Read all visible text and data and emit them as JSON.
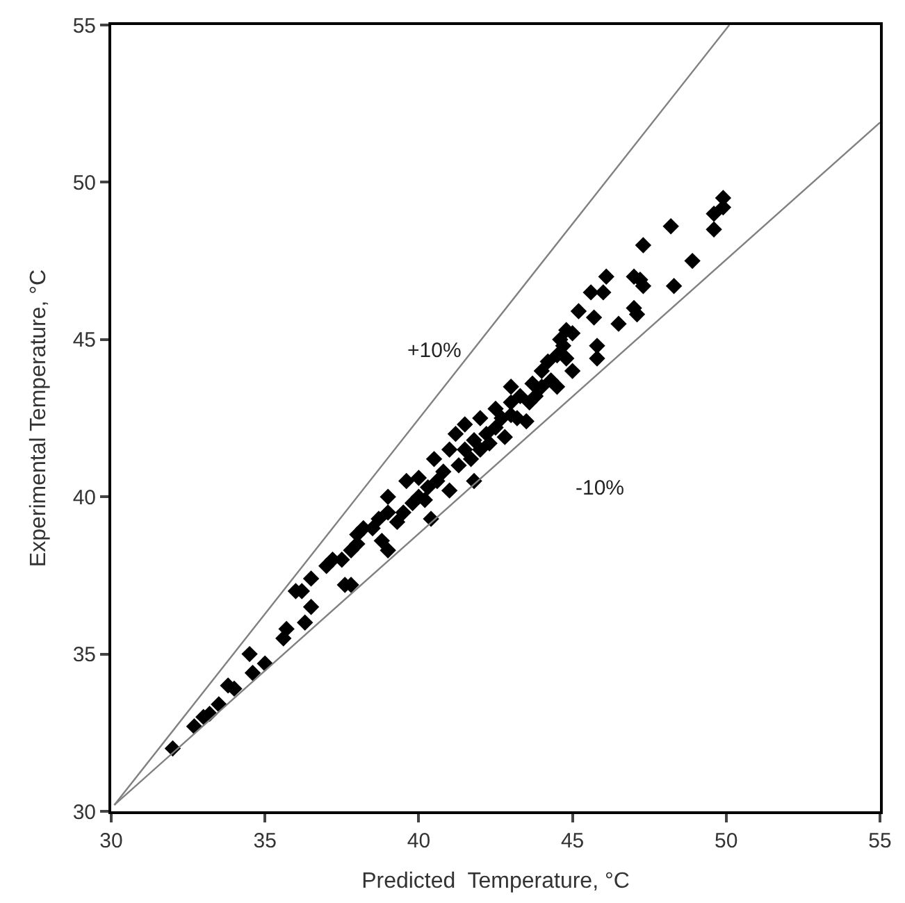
{
  "chart_data": {
    "type": "scatter",
    "xlabel": "Predicted  Temperature, °C",
    "ylabel": "Experimental Temperature, °C",
    "xlim": [
      30,
      55
    ],
    "ylim": [
      30,
      55
    ],
    "xticks": [
      30,
      35,
      40,
      45,
      50,
      55
    ],
    "yticks": [
      30,
      35,
      40,
      45,
      50,
      55
    ],
    "marker": "diamond",
    "annotations": [
      "+10%",
      "-10%"
    ],
    "series": [
      {
        "color": "#000000",
        "x": [
          32.0,
          32.7,
          33.0,
          33.2,
          33.5,
          33.8,
          34.0,
          34.5,
          34.6,
          35.0,
          35.6,
          35.7,
          36.0,
          36.2,
          36.3,
          36.5,
          36.5,
          37.0,
          37.2,
          37.5,
          37.6,
          37.8,
          37.8,
          38.0,
          38.0,
          38.2,
          38.5,
          38.7,
          38.8,
          39.0,
          39.0,
          39.0,
          39.3,
          39.5,
          39.6,
          39.8,
          40.0,
          40.0,
          40.2,
          40.3,
          40.4,
          40.5,
          40.6,
          40.8,
          41.0,
          41.0,
          41.2,
          41.3,
          41.5,
          41.5,
          41.7,
          41.8,
          41.8,
          42.0,
          42.0,
          42.2,
          42.3,
          42.5,
          42.5,
          42.7,
          42.8,
          43.0,
          43.0,
          43.0,
          43.2,
          43.3,
          43.5,
          43.6,
          43.7,
          43.8,
          44.0,
          44.0,
          44.2,
          44.3,
          44.5,
          44.5,
          44.6,
          44.7,
          44.8,
          44.8,
          45.0,
          45.0,
          45.2,
          45.6,
          45.7,
          45.8,
          45.8,
          46.0,
          46.1,
          46.5,
          47.0,
          47.0,
          47.1,
          47.2,
          47.3,
          47.3,
          48.2,
          48.3,
          48.9,
          49.6,
          49.6,
          49.9,
          49.9
        ],
        "values": [
          32.0,
          32.7,
          33.0,
          33.1,
          33.4,
          34.0,
          33.9,
          35.0,
          34.4,
          34.7,
          35.5,
          35.8,
          37.0,
          37.0,
          36.0,
          36.5,
          37.4,
          37.8,
          38.0,
          38.0,
          37.2,
          37.2,
          38.3,
          38.5,
          38.8,
          39.0,
          39.0,
          39.3,
          38.6,
          38.3,
          39.5,
          40.0,
          39.2,
          39.5,
          40.5,
          39.8,
          40.0,
          40.6,
          39.9,
          40.3,
          39.3,
          41.2,
          40.5,
          40.8,
          41.5,
          40.2,
          42.0,
          41.0,
          41.5,
          42.3,
          41.2,
          41.8,
          40.5,
          42.5,
          41.5,
          42.0,
          41.7,
          42.8,
          42.2,
          42.5,
          41.9,
          43.0,
          42.6,
          43.5,
          42.5,
          43.2,
          42.4,
          43.0,
          43.6,
          43.2,
          44.0,
          43.5,
          44.3,
          43.7,
          44.5,
          43.5,
          45.0,
          44.8,
          44.4,
          45.3,
          45.2,
          44.0,
          45.9,
          46.5,
          45.7,
          44.8,
          44.4,
          46.5,
          47.0,
          45.5,
          47.0,
          46.0,
          45.8,
          46.9,
          48.0,
          46.7,
          48.6,
          46.7,
          47.5,
          48.5,
          49.0,
          49.2,
          49.5
        ]
      },
      {
        "type": "line",
        "color": "#808080",
        "line_style": "solid",
        "marker": "none",
        "x": [
          30.1,
          50.1
        ],
        "values": [
          30.2,
          55
        ]
      },
      {
        "type": "line",
        "color": "#808080",
        "line_style": "solid",
        "marker": "none",
        "x": [
          30.1,
          55
        ],
        "values": [
          30.2,
          51.9
        ]
      }
    ]
  }
}
